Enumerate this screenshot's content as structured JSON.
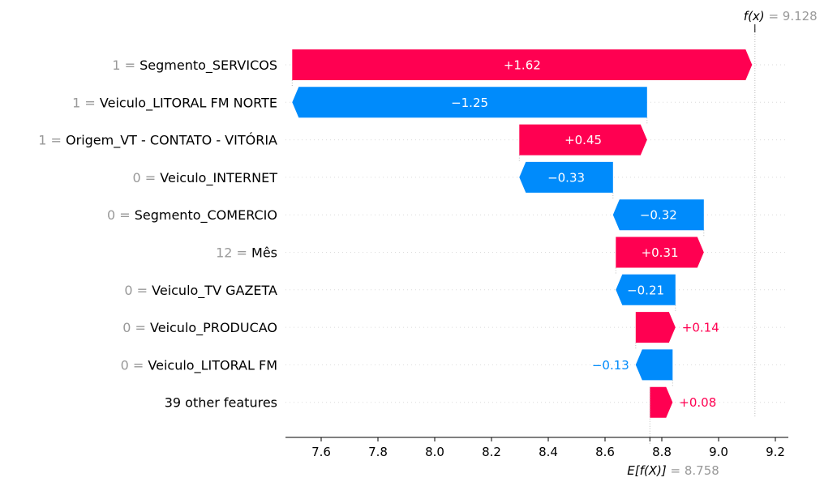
{
  "colors": {
    "positive": "#ff0051",
    "negative": "#008bfb",
    "value_gray": "#999999"
  },
  "chart_data": {
    "type": "waterfall",
    "base_value": 8.758,
    "output_value": 9.128,
    "xlim": [
      7.5,
      9.22
    ],
    "xticks": [
      7.6,
      7.8,
      8.0,
      8.2,
      8.4,
      8.6,
      8.8,
      9.0,
      9.2
    ],
    "xtick_labels": [
      "7.6",
      "7.8",
      "8.0",
      "8.2",
      "8.4",
      "8.6",
      "8.8",
      "9.0",
      "9.2"
    ],
    "fx_label": "f(x)",
    "fx_value_text": "= 9.128",
    "efx_label": "E[f(X)]",
    "efx_value_text": "= 8.758",
    "features": [
      {
        "value": "1",
        "eq": "=",
        "name": "Segmento_SERVICOS",
        "shap": 1.62,
        "label": "+1.62"
      },
      {
        "value": "1",
        "eq": "=",
        "name": "Veiculo_LITORAL FM NORTE",
        "shap": -1.25,
        "label": "−1.25"
      },
      {
        "value": "1",
        "eq": "=",
        "name": "Origem_VT - CONTATO - VITÓRIA",
        "shap": 0.45,
        "label": "+0.45"
      },
      {
        "value": "0",
        "eq": "=",
        "name": "Veiculo_INTERNET",
        "shap": -0.33,
        "label": "−0.33"
      },
      {
        "value": "0",
        "eq": "=",
        "name": "Segmento_COMERCIO",
        "shap": -0.32,
        "label": "−0.32"
      },
      {
        "value": "12",
        "eq": "=",
        "name": "Mês",
        "shap": 0.31,
        "label": "+0.31"
      },
      {
        "value": "0",
        "eq": "=",
        "name": "Veiculo_TV GAZETA",
        "shap": -0.21,
        "label": "−0.21"
      },
      {
        "value": "0",
        "eq": "=",
        "name": "Veiculo_PRODUCAO",
        "shap": 0.14,
        "label": "+0.14"
      },
      {
        "value": "0",
        "eq": "=",
        "name": "Veiculo_LITORAL FM",
        "shap": -0.13,
        "label": "−0.13"
      },
      {
        "value": "",
        "eq": "",
        "name": "39 other features",
        "shap": 0.08,
        "label": "+0.08"
      }
    ]
  }
}
